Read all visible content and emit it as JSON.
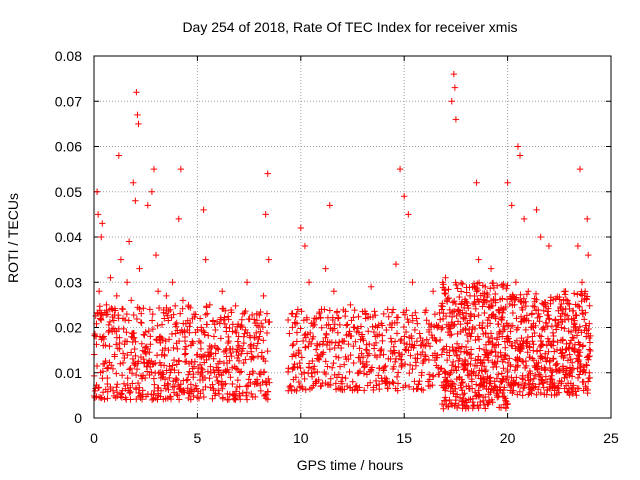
{
  "chart_data": {
    "type": "scatter",
    "title": "Day 254 of 2018, Rate Of TEC Index for receiver xmis",
    "xlabel": "GPS time / hours",
    "ylabel": "ROTI / TECUs",
    "xlim": [
      0,
      25
    ],
    "ylim": [
      0,
      0.08
    ],
    "xticks": [
      0,
      5,
      10,
      15,
      20,
      25
    ],
    "yticks": [
      0,
      0.01,
      0.02,
      0.03,
      0.04,
      0.05,
      0.06,
      0.07,
      0.08
    ],
    "xtick_labels": [
      "0",
      "5",
      "10",
      "15",
      "20",
      "25"
    ],
    "ytick_labels": [
      "0",
      "0.01",
      "0.02",
      "0.03",
      "0.04",
      "0.05",
      "0.06",
      "0.07",
      "0.08"
    ],
    "grid": true,
    "marker": "+",
    "series": [
      {
        "name": "ROTI",
        "color": "#ff0000",
        "points": [
          [
            0.05,
            0.006
          ],
          [
            0.1,
            0.018
          ],
          [
            0.15,
            0.05
          ],
          [
            0.2,
            0.045
          ],
          [
            0.25,
            0.028
          ],
          [
            0.3,
            0.022
          ],
          [
            0.35,
            0.04
          ],
          [
            0.4,
            0.043
          ],
          [
            0.45,
            0.016
          ],
          [
            0.5,
            0.012
          ],
          [
            0.6,
            0.025
          ],
          [
            0.7,
            0.019
          ],
          [
            0.8,
            0.031
          ],
          [
            0.9,
            0.024
          ],
          [
            1.0,
            0.014
          ],
          [
            1.1,
            0.027
          ],
          [
            1.2,
            0.058
          ],
          [
            1.3,
            0.035
          ],
          [
            1.4,
            0.022
          ],
          [
            1.5,
            0.017
          ],
          [
            1.6,
            0.03
          ],
          [
            1.7,
            0.039
          ],
          [
            1.8,
            0.026
          ],
          [
            1.9,
            0.052
          ],
          [
            2.0,
            0.048
          ],
          [
            2.05,
            0.072
          ],
          [
            2.1,
            0.067
          ],
          [
            2.15,
            0.065
          ],
          [
            2.2,
            0.033
          ],
          [
            2.3,
            0.021
          ],
          [
            2.4,
            0.013
          ],
          [
            2.5,
            0.019
          ],
          [
            2.6,
            0.047
          ],
          [
            2.7,
            0.024
          ],
          [
            2.8,
            0.05
          ],
          [
            2.9,
            0.055
          ],
          [
            3.0,
            0.036
          ],
          [
            3.1,
            0.028
          ],
          [
            3.2,
            0.018
          ],
          [
            3.3,
            0.01
          ],
          [
            3.4,
            0.022
          ],
          [
            3.5,
            0.027
          ],
          [
            3.6,
            0.015
          ],
          [
            3.8,
            0.03
          ],
          [
            4.0,
            0.021
          ],
          [
            4.1,
            0.044
          ],
          [
            4.2,
            0.055
          ],
          [
            4.3,
            0.026
          ],
          [
            4.4,
            0.017
          ],
          [
            4.6,
            0.012
          ],
          [
            4.8,
            0.009
          ],
          [
            5.0,
            0.014
          ],
          [
            5.2,
            0.011
          ],
          [
            5.3,
            0.046
          ],
          [
            5.4,
            0.035
          ],
          [
            5.6,
            0.025
          ],
          [
            5.8,
            0.018
          ],
          [
            6.0,
            0.012
          ],
          [
            6.2,
            0.028
          ],
          [
            6.4,
            0.02
          ],
          [
            6.6,
            0.009
          ],
          [
            6.8,
            0.005
          ],
          [
            7.0,
            0.016
          ],
          [
            7.2,
            0.023
          ],
          [
            7.4,
            0.03
          ],
          [
            7.6,
            0.013
          ],
          [
            7.8,
            0.008
          ],
          [
            8.0,
            0.018
          ],
          [
            8.2,
            0.027
          ],
          [
            8.3,
            0.045
          ],
          [
            8.4,
            0.054
          ],
          [
            8.45,
            0.035
          ],
          [
            9.4,
            0.011
          ],
          [
            9.6,
            0.016
          ],
          [
            9.8,
            0.023
          ],
          [
            10.0,
            0.042
          ],
          [
            10.2,
            0.038
          ],
          [
            10.4,
            0.03
          ],
          [
            10.6,
            0.021
          ],
          [
            10.8,
            0.016
          ],
          [
            11.0,
            0.024
          ],
          [
            11.2,
            0.033
          ],
          [
            11.4,
            0.047
          ],
          [
            11.6,
            0.028
          ],
          [
            11.8,
            0.022
          ],
          [
            12.0,
            0.017
          ],
          [
            12.2,
            0.013
          ],
          [
            12.4,
            0.025
          ],
          [
            12.6,
            0.02
          ],
          [
            12.8,
            0.01
          ],
          [
            13.0,
            0.012
          ],
          [
            13.2,
            0.015
          ],
          [
            13.4,
            0.029
          ],
          [
            13.6,
            0.018
          ],
          [
            13.8,
            0.011
          ],
          [
            14.0,
            0.014
          ],
          [
            14.2,
            0.024
          ],
          [
            14.4,
            0.02
          ],
          [
            14.6,
            0.034
          ],
          [
            14.8,
            0.055
          ],
          [
            15.0,
            0.049
          ],
          [
            15.2,
            0.045
          ],
          [
            15.4,
            0.03
          ],
          [
            15.6,
            0.022
          ],
          [
            15.8,
            0.016
          ],
          [
            16.0,
            0.013
          ],
          [
            16.2,
            0.019
          ],
          [
            16.4,
            0.028
          ],
          [
            16.6,
            0.02
          ],
          [
            16.8,
            0.011
          ],
          [
            17.0,
            0.031
          ],
          [
            17.2,
            0.015
          ],
          [
            17.3,
            0.07
          ],
          [
            17.4,
            0.076
          ],
          [
            17.45,
            0.073
          ],
          [
            17.5,
            0.066
          ],
          [
            17.6,
            0.024
          ],
          [
            17.8,
            0.012
          ],
          [
            18.0,
            0.007
          ],
          [
            18.2,
            0.018
          ],
          [
            18.4,
            0.029
          ],
          [
            18.5,
            0.052
          ],
          [
            18.6,
            0.035
          ],
          [
            18.8,
            0.021
          ],
          [
            19.0,
            0.014
          ],
          [
            19.2,
            0.033
          ],
          [
            19.4,
            0.026
          ],
          [
            19.6,
            0.019
          ],
          [
            19.8,
            0.011
          ],
          [
            20.0,
            0.052
          ],
          [
            20.2,
            0.047
          ],
          [
            20.4,
            0.03
          ],
          [
            20.5,
            0.06
          ],
          [
            20.6,
            0.058
          ],
          [
            20.8,
            0.044
          ],
          [
            21.0,
            0.028
          ],
          [
            21.2,
            0.018
          ],
          [
            21.4,
            0.046
          ],
          [
            21.6,
            0.04
          ],
          [
            21.8,
            0.025
          ],
          [
            22.0,
            0.038
          ],
          [
            22.2,
            0.016
          ],
          [
            22.4,
            0.012
          ],
          [
            22.6,
            0.02
          ],
          [
            22.8,
            0.028
          ],
          [
            23.0,
            0.014
          ],
          [
            23.2,
            0.022
          ],
          [
            23.4,
            0.038
          ],
          [
            23.5,
            0.055
          ],
          [
            23.6,
            0.03
          ],
          [
            23.8,
            0.018
          ],
          [
            23.85,
            0.044
          ],
          [
            23.9,
            0.036
          ],
          [
            23.95,
            0.01
          ]
        ],
        "scatter_bands": [
          {
            "start": 0.0,
            "end": 8.5,
            "step": 0.04,
            "min": 0.004,
            "max": 0.025
          },
          {
            "start": 9.4,
            "end": 16.8,
            "step": 0.05,
            "min": 0.006,
            "max": 0.024
          },
          {
            "start": 16.8,
            "end": 20.0,
            "step": 0.02,
            "min": 0.002,
            "max": 0.03
          },
          {
            "start": 20.0,
            "end": 24.0,
            "step": 0.025,
            "min": 0.005,
            "max": 0.028
          }
        ]
      }
    ]
  }
}
